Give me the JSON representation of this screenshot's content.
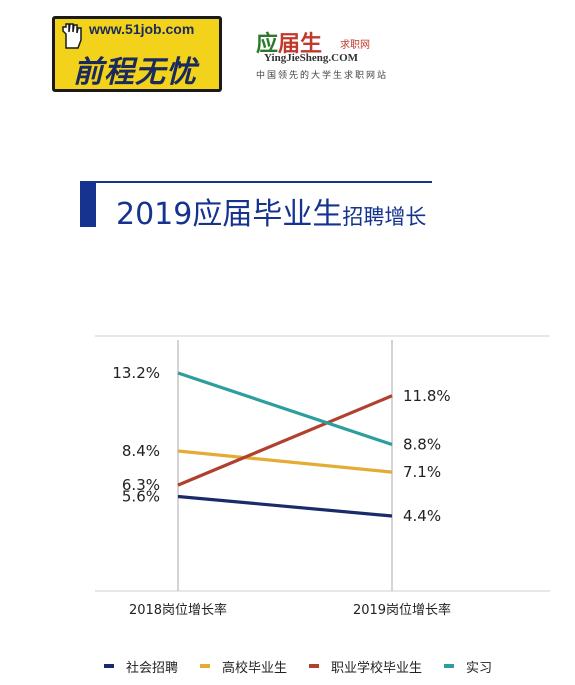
{
  "logo_51job": {
    "url": "www.51job.com",
    "slogan": "前程无忧"
  },
  "logo_yingjiesheng": {
    "name_part1": "应",
    "name_part2": "届生",
    "subtitle": "求职网",
    "english": "YingJieSheng.COM",
    "tagline": "中国领先的大学生求职网站"
  },
  "title": {
    "main": "2019应届毕业生",
    "small": "招聘增长"
  },
  "colors": {
    "title": "#15338f",
    "社会招聘": "#1b2a6b",
    "高校毕业生": "#e3ad35",
    "职业学校毕业生": "#b0412e",
    "实习": "#2e9d9d"
  },
  "chart_data": {
    "type": "line",
    "categories": [
      "2018岗位增长率",
      "2019岗位增长率"
    ],
    "series": [
      {
        "name": "社会招聘",
        "values": [
          5.6,
          4.4
        ],
        "labels": [
          "5.6%",
          "4.4%"
        ],
        "color": "#1b2a6b"
      },
      {
        "name": "高校毕业生",
        "values": [
          8.4,
          7.1
        ],
        "labels": [
          "8.4%",
          "7.1%"
        ],
        "color": "#e3ad35"
      },
      {
        "name": "职业学校毕业生",
        "values": [
          6.3,
          11.8
        ],
        "labels": [
          "6.3%",
          "11.8%"
        ],
        "color": "#b0412e"
      },
      {
        "name": "实习",
        "values": [
          13.2,
          8.8
        ],
        "labels": [
          "13.2%",
          "8.8%"
        ],
        "color": "#2e9d9d"
      }
    ],
    "title": "2019应届毕业生招聘增长",
    "legend_position": "bottom",
    "grid": false
  }
}
